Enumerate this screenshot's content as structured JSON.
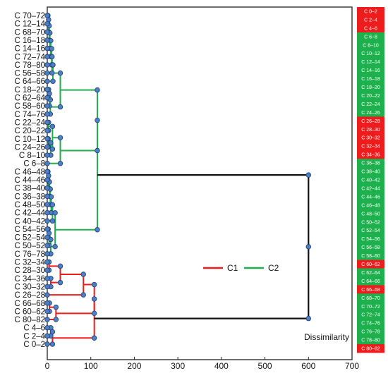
{
  "chart_data": {
    "type": "dendrogram",
    "xlabel": "Dissimilarity",
    "xlim": [
      0,
      700
    ],
    "xticks": [
      0,
      100,
      200,
      300,
      400,
      500,
      600,
      700
    ],
    "legend": {
      "position": "center-right",
      "entries": [
        {
          "name": "C1",
          "color": "#ee1c1c"
        },
        {
          "name": "C2",
          "color": "#1fb04e"
        }
      ]
    },
    "leaves": [
      "C 70–72",
      "C 12–14",
      "C 68–70",
      "C 16–18",
      "C 14–16",
      "C 72–74",
      "C 78–80",
      "C 56–58",
      "C 64–66",
      "C 18–20",
      "C 62–64",
      "C 58–60",
      "C 74–76",
      "C 22–24",
      "C 20–22",
      "C 10–12",
      "C 24–26",
      "C 8–10",
      "C 6–8",
      "C 46–48",
      "C 44–46",
      "C 38–40",
      "C 36–38",
      "C 48–50",
      "C 42–44",
      "C 40–42",
      "C 54–56",
      "C 52–54",
      "C 50–52",
      "C 76–78",
      "C 32–34",
      "C 28–30",
      "C 34–36",
      "C 30–32",
      "C 26–28",
      "C 66–68",
      "C 60–62",
      "C 80–82",
      "C 4–6",
      "C 2–4",
      "C 0–2"
    ],
    "merges": [
      {
        "l": [
          0,
          1
        ],
        "h": 1.5,
        "c": "C2"
      },
      {
        "l": [
          0,
          2
        ],
        "h": 3,
        "c": "C2"
      },
      {
        "l": [
          0,
          3
        ],
        "h": 4.5,
        "c": "C2"
      },
      {
        "l": [
          0,
          4
        ],
        "h": 6,
        "c": "C2"
      },
      {
        "l": [
          0,
          5
        ],
        "h": 8,
        "c": "C2"
      },
      {
        "l": [
          0,
          6
        ],
        "h": 10,
        "c": "C2"
      },
      {
        "l": [
          0,
          7
        ],
        "h": 11,
        "c": "C2"
      },
      {
        "l": [
          0,
          8
        ],
        "h": 13,
        "c": "C2"
      },
      {
        "l": [
          9,
          10
        ],
        "h": 3,
        "c": "C2"
      },
      {
        "l": [
          9,
          11
        ],
        "h": 5,
        "c": "C2"
      },
      {
        "l": [
          9,
          12
        ],
        "h": 7,
        "c": "C2"
      },
      {
        "l": [
          0,
          12
        ],
        "h": 30,
        "c": "C2"
      },
      {
        "l": [
          13,
          14
        ],
        "h": 3,
        "c": "C2"
      },
      {
        "l": [
          15,
          16
        ],
        "h": 2,
        "c": "C2"
      },
      {
        "l": [
          15,
          17
        ],
        "h": 8,
        "c": "C2"
      },
      {
        "l": [
          13,
          17
        ],
        "h": 12,
        "c": "C2"
      },
      {
        "l": [
          13,
          18
        ],
        "h": 30,
        "c": "C2"
      },
      {
        "l": [
          0,
          18
        ],
        "h": 115,
        "c": "C2"
      },
      {
        "l": [
          19,
          20
        ],
        "h": 1.5,
        "c": "C2"
      },
      {
        "l": [
          19,
          21
        ],
        "h": 3,
        "c": "C2"
      },
      {
        "l": [
          19,
          22
        ],
        "h": 5,
        "c": "C2"
      },
      {
        "l": [
          19,
          23
        ],
        "h": 7,
        "c": "C2"
      },
      {
        "l": [
          19,
          24
        ],
        "h": 9,
        "c": "C2"
      },
      {
        "l": [
          19,
          25
        ],
        "h": 12,
        "c": "C2"
      },
      {
        "l": [
          26,
          27
        ],
        "h": 2,
        "c": "C2"
      },
      {
        "l": [
          26,
          28
        ],
        "h": 4,
        "c": "C2"
      },
      {
        "l": [
          26,
          29
        ],
        "h": 8,
        "c": "C2"
      },
      {
        "l": [
          19,
          29
        ],
        "h": 18,
        "c": "C2"
      },
      {
        "l": [
          0,
          29
        ],
        "h": 115,
        "c": "C2"
      },
      {
        "l": [
          30,
          31
        ],
        "h": 4,
        "c": "C1"
      },
      {
        "l": [
          32,
          33
        ],
        "h": 8,
        "c": "C1"
      },
      {
        "l": [
          30,
          33
        ],
        "h": 30,
        "c": "C1"
      },
      {
        "l": [
          30,
          34
        ],
        "h": 83,
        "c": "C1"
      },
      {
        "l": [
          35,
          36
        ],
        "h": 5,
        "c": "C1"
      },
      {
        "l": [
          35,
          37
        ],
        "h": 20,
        "c": "C1"
      },
      {
        "l": [
          30,
          37
        ],
        "h": 108,
        "c": "C1"
      },
      {
        "l": [
          38,
          39
        ],
        "h": 8,
        "c": "C1"
      },
      {
        "l": [
          38,
          40
        ],
        "h": 12,
        "c": "C1"
      },
      {
        "l": [
          30,
          40
        ],
        "h": 108,
        "c": "C1"
      },
      {
        "l": [
          0,
          40
        ],
        "h": 600,
        "c": "root"
      }
    ]
  },
  "cluster_strip": {
    "colors": {
      "C1": "#ee1c1c",
      "C2": "#1fb04e"
    },
    "items": [
      {
        "label": "C 0–2",
        "c": "C1"
      },
      {
        "label": "C 2–4",
        "c": "C1"
      },
      {
        "label": "C 4–6",
        "c": "C1"
      },
      {
        "label": "C 6–8",
        "c": "C2"
      },
      {
        "label": "C 8–10",
        "c": "C2"
      },
      {
        "label": "C 10–12",
        "c": "C2"
      },
      {
        "label": "C 12–14",
        "c": "C2"
      },
      {
        "label": "C 14–16",
        "c": "C2"
      },
      {
        "label": "C 16–18",
        "c": "C2"
      },
      {
        "label": "C 18–20",
        "c": "C2"
      },
      {
        "label": "C 20–22",
        "c": "C2"
      },
      {
        "label": "C 22–24",
        "c": "C2"
      },
      {
        "label": "C 24–26",
        "c": "C2"
      },
      {
        "label": "C 26–28",
        "c": "C1"
      },
      {
        "label": "C 28–30",
        "c": "C1"
      },
      {
        "label": "C 30–32",
        "c": "C1"
      },
      {
        "label": "C 32–34",
        "c": "C1"
      },
      {
        "label": "C 34–36",
        "c": "C1"
      },
      {
        "label": "C 36–38",
        "c": "C2"
      },
      {
        "label": "C 38–40",
        "c": "C2"
      },
      {
        "label": "C 40–42",
        "c": "C2"
      },
      {
        "label": "C 42–44",
        "c": "C2"
      },
      {
        "label": "C 44–46",
        "c": "C2"
      },
      {
        "label": "C 46–48",
        "c": "C2"
      },
      {
        "label": "C 48–50",
        "c": "C2"
      },
      {
        "label": "C 50–52",
        "c": "C2"
      },
      {
        "label": "C 52–54",
        "c": "C2"
      },
      {
        "label": "C 54–56",
        "c": "C2"
      },
      {
        "label": "C 56–58",
        "c": "C2"
      },
      {
        "label": "C 58–60",
        "c": "C2"
      },
      {
        "label": "C 60–62",
        "c": "C1"
      },
      {
        "label": "C 62–64",
        "c": "C2"
      },
      {
        "label": "C 64–66",
        "c": "C2"
      },
      {
        "label": "C 66–68",
        "c": "C1"
      },
      {
        "label": "C 68–70",
        "c": "C2"
      },
      {
        "label": "C 70–72",
        "c": "C2"
      },
      {
        "label": "C 72–74",
        "c": "C2"
      },
      {
        "label": "C 74–76",
        "c": "C2"
      },
      {
        "label": "C 76–78",
        "c": "C2"
      },
      {
        "label": "C 78–80",
        "c": "C2"
      },
      {
        "label": "C 80–82",
        "c": "C1"
      }
    ]
  },
  "style": {
    "root_color": "#111111",
    "node_fill": "#4f7fc2",
    "node_stroke": "#1b3f73",
    "frame_color": "#222222"
  }
}
